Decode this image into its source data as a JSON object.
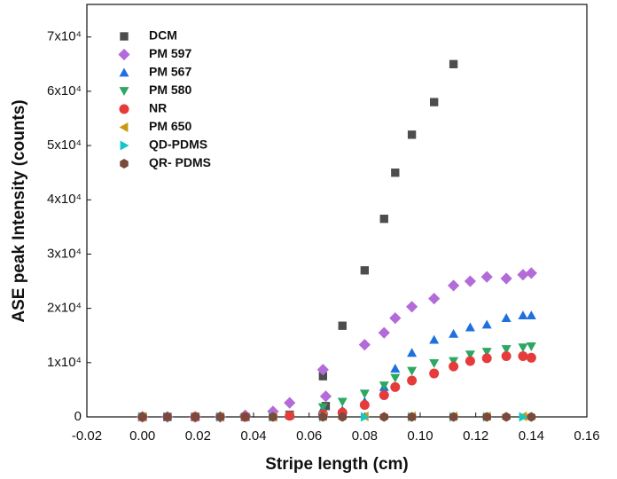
{
  "chart_data": {
    "type": "scatter",
    "x_label": "Stripe length (cm)",
    "y_label": "ASE peak Intensity (counts)",
    "xlim": [
      -0.02,
      0.16
    ],
    "ylim": [
      0,
      76000
    ],
    "xticks": [
      -0.02,
      {
        "value": 0,
        "label": "0.00"
      },
      0.02,
      0.04,
      0.06,
      0.08,
      {
        "value": 0.1,
        "label": "0.10"
      },
      0.12,
      0.14,
      0.16
    ],
    "yticks": [
      0,
      {
        "value": 10000,
        "label": "1x10⁴"
      },
      {
        "value": 20000,
        "label": "2x10⁴"
      },
      {
        "value": 30000,
        "label": "3x10⁴"
      },
      {
        "value": 40000,
        "label": "4x10⁴"
      },
      {
        "value": 50000,
        "label": "5x10⁴"
      },
      {
        "value": 60000,
        "label": "6x10⁴"
      },
      {
        "value": 70000,
        "label": "7x10⁴"
      }
    ],
    "legend": "upper left",
    "series": [
      {
        "name": "DCM",
        "color": "#4d4d4d",
        "marker": "square",
        "x": [
          0,
          0.009,
          0.019,
          0.028,
          0.037,
          0.047,
          0.053,
          0.065,
          0.066,
          0.072,
          0.08,
          0.087,
          0.091,
          0.097,
          0.105,
          0.112
        ],
        "values": [
          0,
          0,
          0,
          0,
          0,
          0,
          400,
          7500,
          2000,
          16800,
          27000,
          36500,
          45000,
          52000,
          58000,
          65000
        ]
      },
      {
        "name": "PM 597",
        "color": "#b36bd9",
        "marker": "diamond",
        "x": [
          0,
          0.009,
          0.019,
          0.028,
          0.037,
          0.047,
          0.053,
          0.065,
          0.066,
          0.08,
          0.087,
          0.091,
          0.097,
          0.105,
          0.112,
          0.118,
          0.124,
          0.131,
          0.137,
          0.14
        ],
        "values": [
          0,
          0,
          0,
          0,
          300,
          1000,
          2600,
          8700,
          3800,
          13300,
          15500,
          18200,
          20300,
          21800,
          24200,
          25000,
          25800,
          25500,
          26200,
          26500
        ]
      },
      {
        "name": "PM 567",
        "color": "#1f6fe0",
        "marker": "triangle-up",
        "x": [
          0,
          0.019,
          0.037,
          0.053,
          0.065,
          0.072,
          0.08,
          0.087,
          0.091,
          0.097,
          0.105,
          0.112,
          0.118,
          0.124,
          0.131,
          0.137,
          0.14
        ],
        "values": [
          0,
          0,
          0,
          300,
          1500,
          1200,
          2800,
          5500,
          8900,
          11800,
          14200,
          15300,
          16500,
          17000,
          18200,
          18700,
          18700
        ]
      },
      {
        "name": "PM 580",
        "color": "#2ca860",
        "marker": "triangle-down",
        "x": [
          0,
          0.019,
          0.037,
          0.053,
          0.065,
          0.072,
          0.08,
          0.087,
          0.091,
          0.097,
          0.105,
          0.112,
          0.118,
          0.124,
          0.131,
          0.137,
          0.14
        ],
        "values": [
          0,
          0,
          0,
          300,
          1800,
          2800,
          4300,
          5800,
          7200,
          8500,
          9900,
          10300,
          11500,
          12000,
          12500,
          12800,
          13000
        ]
      },
      {
        "name": "NR",
        "color": "#e63b3b",
        "marker": "circle",
        "x": [
          0,
          0.019,
          0.037,
          0.053,
          0.065,
          0.072,
          0.08,
          0.087,
          0.091,
          0.097,
          0.105,
          0.112,
          0.118,
          0.124,
          0.131,
          0.137,
          0.14
        ],
        "values": [
          0,
          0,
          0,
          200,
          500,
          800,
          2200,
          4000,
          5500,
          6700,
          8000,
          9300,
          10300,
          10800,
          11200,
          11200,
          10900
        ]
      },
      {
        "name": "PM 650",
        "color": "#c99a10",
        "marker": "triangle-left",
        "x": [
          0,
          0.028,
          0.047,
          0.065,
          0.08,
          0.097,
          0.112,
          0.124,
          0.137
        ],
        "values": [
          0,
          0,
          0,
          100,
          100,
          100,
          100,
          100,
          100
        ]
      },
      {
        "name": "QD-PDMS",
        "color": "#17c5c5",
        "marker": "triangle-right",
        "x": [
          0,
          0.028,
          0.047,
          0.065,
          0.08,
          0.097,
          0.112,
          0.124,
          0.137
        ],
        "values": [
          0,
          0,
          0,
          0,
          0,
          0,
          0,
          0,
          0
        ]
      },
      {
        "name": "QR- PDMS",
        "color": "#7a4a3a",
        "marker": "hexagon",
        "x": [
          0,
          0.009,
          0.019,
          0.028,
          0.037,
          0.047,
          0.065,
          0.072,
          0.087,
          0.097,
          0.112,
          0.124,
          0.131,
          0.14
        ],
        "values": [
          0,
          0,
          0,
          0,
          0,
          0,
          0,
          0,
          0,
          0,
          0,
          0,
          0,
          0
        ]
      }
    ]
  }
}
